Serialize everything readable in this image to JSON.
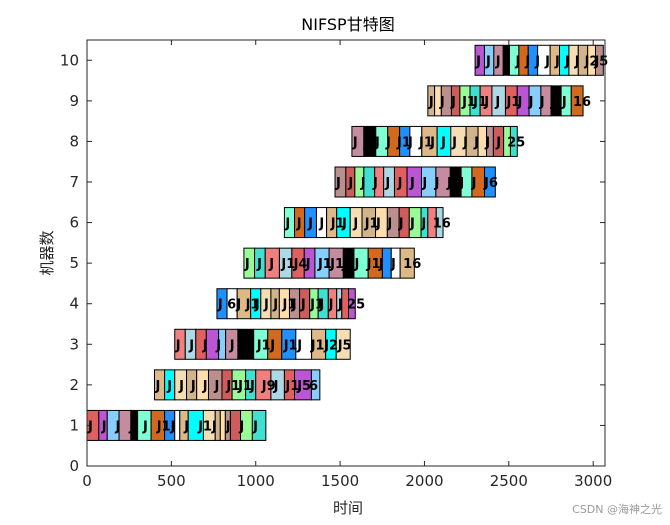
{
  "chart_data": {
    "type": "gantt",
    "title": "NIFSP甘特图",
    "xlabel": "时间",
    "ylabel": "机器数",
    "xlim": [
      0,
      3070
    ],
    "ylim": [
      0,
      10.5
    ],
    "xticks": [
      0,
      500,
      1000,
      1500,
      2000,
      2500,
      3000
    ],
    "yticks": [
      0,
      1,
      2,
      3,
      4,
      5,
      6,
      7,
      8,
      9,
      10
    ],
    "grid": false,
    "palette": [
      "#e06060",
      "#c58ca0",
      "#d2691e",
      "#deb887",
      "#d2b48c",
      "#cd5c5c",
      "#f08080",
      "#ba55d3",
      "#000000",
      "#1e90ff",
      "#00ffff",
      "#ffdead",
      "#98fb98",
      "#add8e6",
      "#87cefa",
      "#7fffd4",
      "#ffffff",
      "#f5deb3",
      "#bc8f8f",
      "#40e0d0"
    ],
    "machines": [
      {
        "machine": 1,
        "start": 0,
        "end": 1060,
        "widths": [
          70,
          50,
          70,
          70,
          40,
          80,
          80,
          60,
          30,
          50,
          90,
          70,
          30,
          30,
          30,
          60,
          70,
          80
        ],
        "labels": [
          "J",
          "J",
          "J",
          "J",
          "J",
          "J1",
          "J",
          "J",
          "J1",
          "J",
          "J",
          "J",
          "J"
        ]
      },
      {
        "machine": 2,
        "start": 400,
        "end": 1380,
        "widths": [
          60,
          60,
          70,
          60,
          70,
          80,
          60,
          80,
          60,
          90,
          80,
          60,
          100,
          50
        ],
        "labels": [
          "J",
          "J",
          "J",
          "J",
          "J",
          "J",
          "J1",
          "J1",
          "J",
          "J9",
          "J",
          "J1",
          "J5",
          "6"
        ]
      },
      {
        "machine": 3,
        "start": 520,
        "end": 1560,
        "widths": [
          60,
          60,
          60,
          70,
          40,
          70,
          90,
          80,
          80,
          80,
          90,
          80,
          60,
          80
        ],
        "labels": [
          "J",
          "J",
          "J",
          "J",
          "J",
          "J",
          "J1",
          "J",
          "J1",
          "J",
          "J1",
          "J2",
          "J5"
        ]
      },
      {
        "machine": 4,
        "start": 770,
        "end": 1590,
        "widths": [
          60,
          60,
          80,
          60,
          60,
          50,
          60,
          60,
          60,
          50,
          60,
          50,
          30,
          40,
          40
        ],
        "labels": [
          "J",
          "6",
          "J",
          "J1",
          "J",
          "J",
          "J",
          "J1",
          "J",
          "J",
          "J1",
          "J",
          "J",
          "J",
          "25"
        ]
      },
      {
        "machine": 5,
        "start": 930,
        "end": 1940,
        "widths": [
          60,
          60,
          80,
          70,
          70,
          60,
          80,
          80,
          60,
          80,
          80,
          50,
          50,
          80
        ],
        "labels": [
          "J",
          "J",
          "J",
          "J1",
          "J4",
          "J",
          "J1",
          "J1",
          "J",
          "J",
          "J1",
          "J",
          "J",
          "16"
        ]
      },
      {
        "machine": 6,
        "start": 1170,
        "end": 2110,
        "widths": [
          60,
          60,
          70,
          60,
          60,
          80,
          70,
          80,
          70,
          70,
          60,
          70,
          40,
          50,
          40
        ],
        "labels": [
          "J",
          "J",
          "J",
          "J",
          "J1",
          "J",
          "J",
          "J1",
          "J",
          "J",
          "J",
          "J",
          "J",
          "16"
        ]
      },
      {
        "machine": 7,
        "start": 1470,
        "end": 2420,
        "widths": [
          60,
          50,
          50,
          60,
          50,
          60,
          70,
          80,
          80,
          80,
          60,
          60,
          70,
          60
        ],
        "labels": [
          "J",
          "J",
          "J",
          "J",
          "J",
          "J",
          "J",
          "J",
          "J",
          "J9",
          "J",
          "J",
          "J6"
        ]
      },
      {
        "machine": 8,
        "start": 1570,
        "end": 2550,
        "widths": [
          70,
          70,
          70,
          70,
          60,
          70,
          90,
          80,
          90,
          70,
          50,
          40,
          60,
          40,
          40
        ],
        "labels": [
          "J",
          "J",
          "J",
          "J",
          "J1",
          "J",
          "J1",
          "J",
          "J",
          "J",
          "J",
          "J",
          "J",
          "J",
          "25"
        ]
      },
      {
        "machine": 9,
        "start": 2020,
        "end": 2940,
        "widths": [
          40,
          40,
          60,
          50,
          60,
          60,
          70,
          80,
          70,
          70,
          70,
          60,
          60,
          60,
          70
        ],
        "labels": [
          "J",
          "J",
          "J",
          "J1",
          "J1",
          "J",
          "J",
          "J1",
          "J",
          "J",
          "J",
          "J",
          "J",
          "16"
        ]
      },
      {
        "machine": 10,
        "start": 2300,
        "end": 3060,
        "widths": [
          60,
          60,
          60,
          40,
          60,
          60,
          60,
          80,
          60,
          60,
          60,
          60,
          50,
          50
        ],
        "labels": [
          "J",
          "J",
          "J",
          "J",
          "J",
          "J",
          "J",
          "J",
          "J",
          "J",
          "J",
          "J2",
          "J5"
        ]
      }
    ]
  },
  "watermark": "CSDN @海神之光"
}
